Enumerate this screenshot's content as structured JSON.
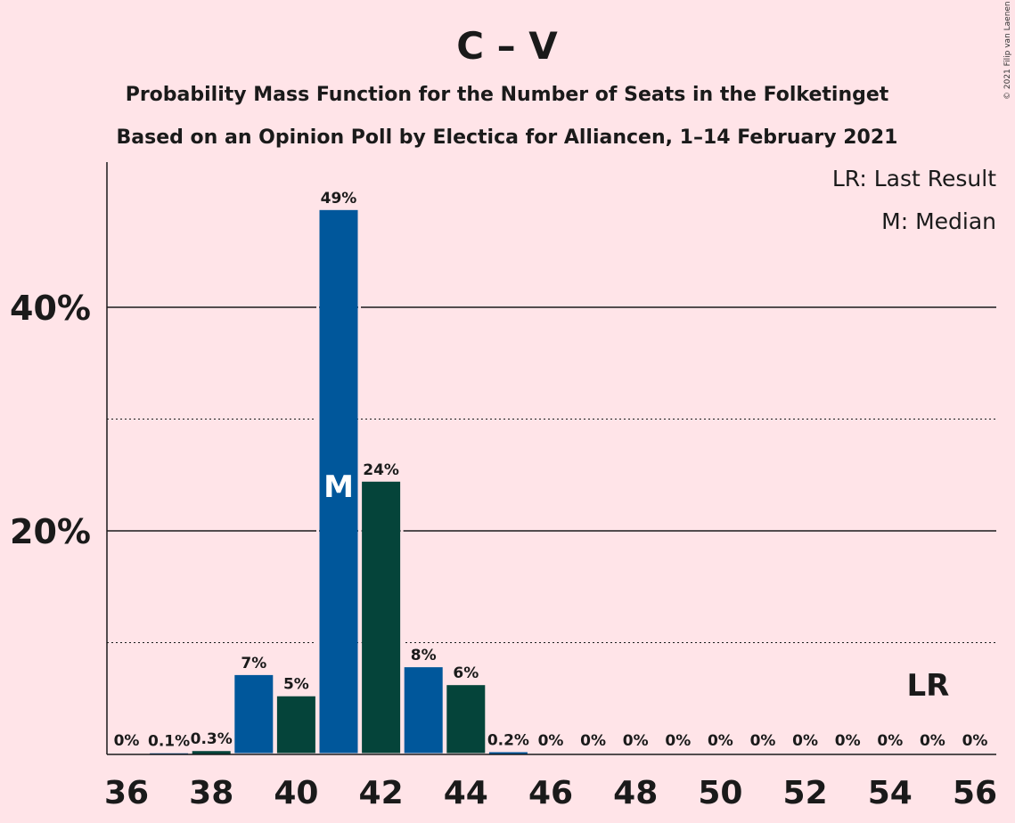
{
  "chart_data": {
    "type": "bar",
    "title": "C – V",
    "subtitle_1": "Probability Mass Function for the Number of Seats in the Folketinget",
    "subtitle_2": "Based on an Opinion Poll by Electica for Alliancen, 1–14 February 2021",
    "copyright": "© 2021 Filip van Laenen",
    "legend_lr": "LR: Last Result",
    "legend_median": "M: Median",
    "xlabel": "",
    "ylabel": "",
    "ylim": [
      0,
      53
    ],
    "grid": true,
    "legend_placement": "top-right",
    "y_major_ticks": [
      {
        "value": 20,
        "label": "20%"
      },
      {
        "value": 40,
        "label": "40%"
      }
    ],
    "y_minor_ticks": [
      10,
      30
    ],
    "x_tick_labels": [
      "36",
      "38",
      "40",
      "42",
      "44",
      "46",
      "48",
      "50",
      "52",
      "54",
      "56"
    ],
    "x_tick_values": [
      36,
      38,
      40,
      42,
      44,
      46,
      48,
      50,
      52,
      54,
      56
    ],
    "categories": [
      36,
      37,
      38,
      39,
      40,
      41,
      42,
      43,
      44,
      45,
      46,
      47,
      48,
      49,
      50,
      51,
      52,
      53,
      54,
      55,
      56
    ],
    "values": [
      0,
      0.1,
      0.3,
      7.1,
      5.2,
      48.7,
      24.4,
      7.8,
      6.2,
      0.2,
      0,
      0,
      0,
      0,
      0,
      0,
      0,
      0,
      0,
      0,
      0
    ],
    "value_labels": [
      "0%",
      "0.1%",
      "0.3%",
      "7%",
      "5%",
      "49%",
      "24%",
      "8%",
      "6%",
      "0.2%",
      "0%",
      "0%",
      "0%",
      "0%",
      "0%",
      "0%",
      "0%",
      "0%",
      "0%",
      "0%",
      "0%"
    ],
    "median_seat": 41,
    "median_marker": "M",
    "last_result_seat": 55,
    "last_result_marker": "LR",
    "colors": {
      "background": "#ffe4e8",
      "bar_primary": "#00579b",
      "bar_secondary": "#05443a",
      "text": "#1a1a1a"
    }
  }
}
